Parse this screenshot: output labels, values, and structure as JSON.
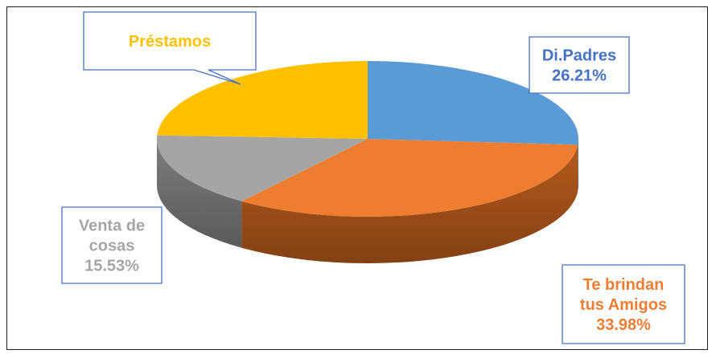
{
  "chart_data": {
    "type": "pie",
    "style": "3d",
    "title": "",
    "slices": [
      {
        "label": "Di.Padres",
        "value": 26.21,
        "display": "26.21%",
        "color": "#5b9bd5",
        "side_color": "#3f76a8"
      },
      {
        "label": "Te brindan tus Amigos",
        "value": 33.98,
        "display": "33.98%",
        "color": "#ed7d31",
        "side_color": "#b65a1c"
      },
      {
        "label": "Venta de cosas",
        "value": 15.53,
        "display": "15.53%",
        "color": "#a5a5a5",
        "side_color": "#7d7d7d"
      },
      {
        "label": "Préstamos",
        "value": 24.27,
        "display": "",
        "color": "#ffc000",
        "side_color": "#c79400"
      }
    ],
    "callouts": [
      {
        "lines": [
          "Préstamos"
        ],
        "color": "#ffc000"
      },
      {
        "lines": [
          "Di.Padres",
          "26.21%"
        ],
        "color": "#4472c4"
      },
      {
        "lines": [
          "Venta de",
          "cosas",
          "15.53%"
        ],
        "color": "#a5a5a5"
      },
      {
        "lines": [
          "Te brindan",
          "tus Amigos",
          "33.98%"
        ],
        "color": "#ed7d31"
      }
    ]
  }
}
